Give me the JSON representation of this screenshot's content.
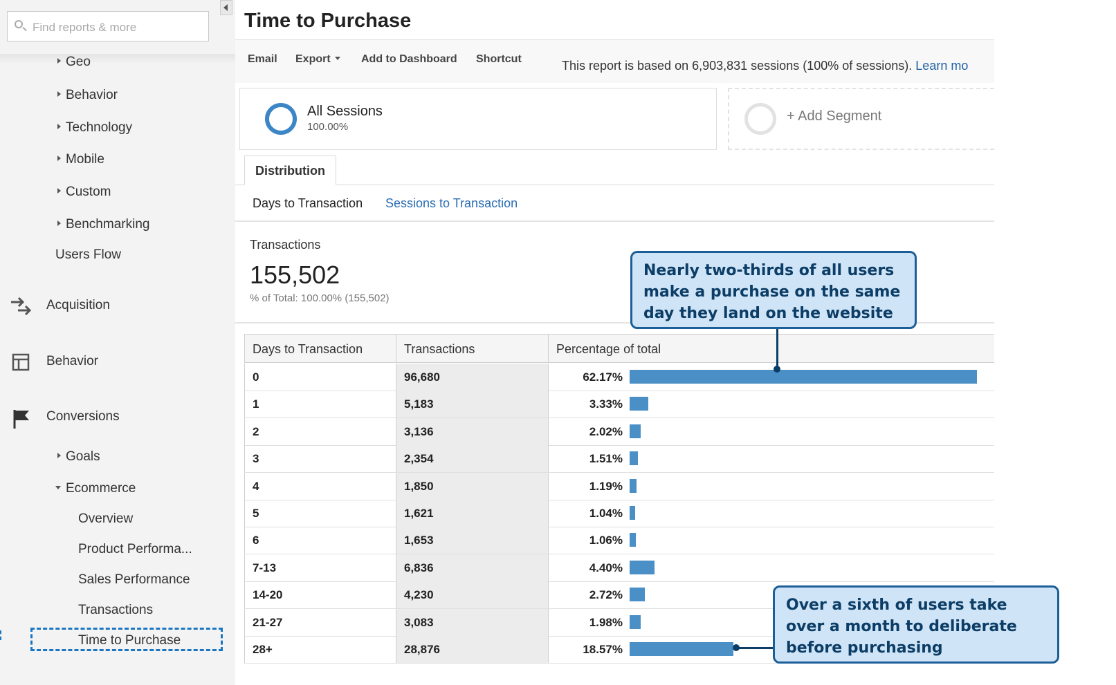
{
  "sidebar": {
    "search_placeholder": "Find reports & more",
    "audience_items": [
      "Geo",
      "Behavior",
      "Technology",
      "Mobile",
      "Custom",
      "Benchmarking"
    ],
    "users_flow": "Users Flow",
    "sections": {
      "acquisition": "Acquisition",
      "behavior": "Behavior",
      "conversions": "Conversions"
    },
    "conversions_items": {
      "goals": "Goals",
      "ecommerce": "Ecommerce"
    },
    "ecommerce_items": [
      "Overview",
      "Product Performa...",
      "Sales Performance",
      "Transactions",
      "Time to Purchase"
    ]
  },
  "page": {
    "title": "Time to Purchase"
  },
  "toolbar": {
    "email": "Email",
    "export": "Export",
    "add_to_dashboard": "Add to Dashboard",
    "shortcut": "Shortcut",
    "note": "This report is based on 6,903,831 sessions (100% of sessions).",
    "learn_more": "Learn mo"
  },
  "segments": {
    "active_name": "All Sessions",
    "active_pct": "100.00%",
    "add_label": "+ Add Segment",
    "ring_color": "#3d86c6"
  },
  "tabs": {
    "distribution": "Distribution",
    "days_to_transaction": "Days to Transaction",
    "sessions_to_transaction": "Sessions to Transaction"
  },
  "metric": {
    "label": "Transactions",
    "value": "155,502",
    "sub": "% of Total: 100.00% (155,502)"
  },
  "table": {
    "headers": [
      "Days to Transaction",
      "Transactions",
      "Percentage of total"
    ],
    "rows": [
      {
        "days": "0",
        "transactions": "96,680",
        "pct_label": "62.17%",
        "pct": 62.17
      },
      {
        "days": "1",
        "transactions": "5,183",
        "pct_label": "3.33%",
        "pct": 3.33
      },
      {
        "days": "2",
        "transactions": "3,136",
        "pct_label": "2.02%",
        "pct": 2.02
      },
      {
        "days": "3",
        "transactions": "2,354",
        "pct_label": "1.51%",
        "pct": 1.51
      },
      {
        "days": "4",
        "transactions": "1,850",
        "pct_label": "1.19%",
        "pct": 1.19
      },
      {
        "days": "5",
        "transactions": "1,621",
        "pct_label": "1.04%",
        "pct": 1.04
      },
      {
        "days": "6",
        "transactions": "1,653",
        "pct_label": "1.06%",
        "pct": 1.06
      },
      {
        "days": "7-13",
        "transactions": "6,836",
        "pct_label": "4.40%",
        "pct": 4.4
      },
      {
        "days": "14-20",
        "transactions": "4,230",
        "pct_label": "2.72%",
        "pct": 2.72
      },
      {
        "days": "21-27",
        "transactions": "3,083",
        "pct_label": "1.98%",
        "pct": 1.98
      },
      {
        "days": "28+",
        "transactions": "28,876",
        "pct_label": "18.57%",
        "pct": 18.57
      }
    ],
    "bar_color": "#4a8fc6"
  },
  "callouts": {
    "first": "Nearly two-thirds of all users make a purchase on the same day they land on the website",
    "second": "Over a sixth of users take over a month to deliberate before purchasing"
  }
}
